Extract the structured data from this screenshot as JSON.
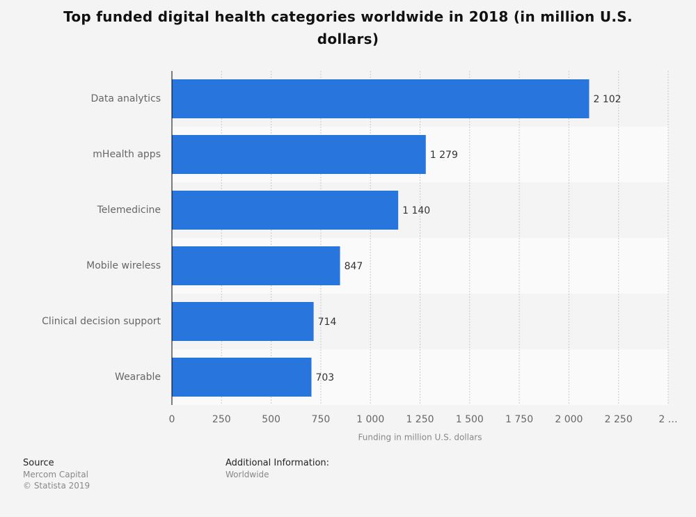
{
  "chart_data": {
    "type": "bar",
    "orientation": "horizontal",
    "title": "Top funded digital health categories worldwide in 2018 (in million U.S. dollars)",
    "categories": [
      "Data analytics",
      "mHealth apps",
      "Telemedicine",
      "Mobile wireless",
      "Clinical decision support",
      "Wearable"
    ],
    "values": [
      2102,
      1279,
      1140,
      847,
      714,
      703
    ],
    "value_labels": [
      "2 102",
      "1 279",
      "1 140",
      "847",
      "714",
      "703"
    ],
    "color": "#2876dd",
    "xlabel": "Funding in million U.S. dollars",
    "xlim": [
      0,
      2500
    ],
    "xticks": [
      0,
      250,
      500,
      750,
      {
        "value": 1000,
        "label": "1 000"
      },
      {
        "value": 1250,
        "label": "1 250"
      },
      {
        "value": 1500,
        "label": "1 500"
      },
      {
        "value": 1750,
        "label": "1 750"
      },
      {
        "value": 2000,
        "label": "2 000"
      },
      {
        "value": 2250,
        "label": "2 250"
      },
      {
        "value": 2500,
        "label": "2 …"
      }
    ],
    "grid": true
  },
  "footer": {
    "source_label": "Source",
    "source": "Mercom Capital",
    "copyright": "© Statista 2019",
    "info_label": "Additional Information:",
    "info": "Worldwide"
  }
}
